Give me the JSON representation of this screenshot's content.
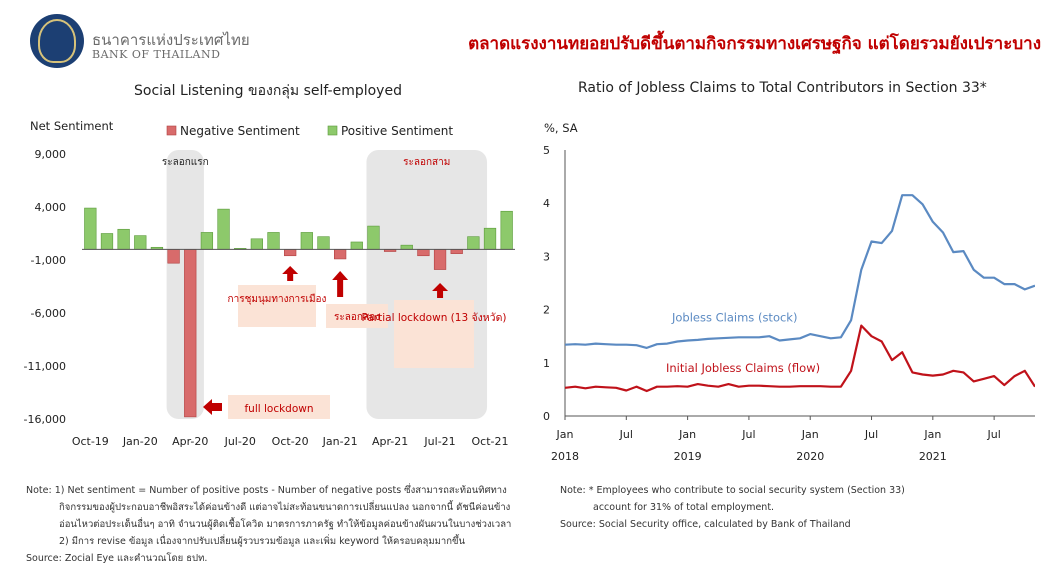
{
  "header": {
    "bank_name_th": "ธนาคารแห่งประเทศไทย",
    "bank_name_en": "BANK OF THAILAND",
    "headline": "ตลาดแรงงานทยอยปรับดีขึ้นตามกิจกรรมทางเศรษฐกิจ แต่โดยรวมยังเปราะบาง"
  },
  "colors": {
    "negative": "#d86b6b",
    "positive": "#8dc96b",
    "stock_line": "#5b8ac2",
    "flow_line": "#c0121a",
    "shade": "#e6e6e6",
    "annotation_box": "#fbe3d6",
    "annotation_text": "#c00000"
  },
  "chart_data": [
    {
      "type": "bar",
      "title": "Social Listening ของกลุ่ม self-employed",
      "ylabel": "Net Sentiment",
      "ylim": [
        -16000,
        9000
      ],
      "yticks": [
        9000,
        4000,
        -1000,
        -6000,
        -11000,
        -16000
      ],
      "ytick_labels": [
        "9,000",
        "4,000",
        "-1,000",
        "-6,000",
        "-11,000",
        "-16,000"
      ],
      "xtick_labels": [
        "Oct-19",
        "Jan-20",
        "Apr-20",
        "Jul-20",
        "Oct-20",
        "Jan-21",
        "Apr-21",
        "Jul-21",
        "Oct-21"
      ],
      "legend": [
        "Negative Sentiment",
        "Positive Sentiment"
      ],
      "legend_position": "top",
      "values": [
        3900,
        1500,
        1900,
        1300,
        200,
        -1300,
        -15800,
        1600,
        3800,
        100,
        1000,
        1600,
        -600,
        1600,
        1200,
        -900,
        700,
        2200,
        -200,
        400,
        -600,
        -1900,
        -400,
        1200,
        2000,
        3600
      ],
      "annotations": [
        {
          "text": "ระลอกแรก",
          "shaded": true
        },
        {
          "text": "ระลอกสาม",
          "shaded": true
        },
        {
          "text": "full lockdown"
        },
        {
          "text": "การชุมนุมทางการเมือง"
        },
        {
          "text": "ระลอกสอง"
        },
        {
          "text": "Partial lockdown (13 จังหวัด)"
        }
      ]
    },
    {
      "type": "line",
      "title": "Ratio of Jobless Claims to Total Contributors in Section 33*",
      "ylabel": "%, SA",
      "ylim": [
        0,
        5
      ],
      "yticks": [
        0,
        1,
        2,
        3,
        4,
        5
      ],
      "xtick_labels": [
        "Jan",
        "Jul",
        "Jan",
        "Jul",
        "Jan",
        "Jul",
        "Jan",
        "Jul"
      ],
      "year_labels": [
        "2018",
        "2019",
        "2020",
        "2021"
      ],
      "x": [
        "2018-01",
        "2018-02",
        "2018-03",
        "2018-04",
        "2018-05",
        "2018-06",
        "2018-07",
        "2018-08",
        "2018-09",
        "2018-10",
        "2018-11",
        "2018-12",
        "2019-01",
        "2019-02",
        "2019-03",
        "2019-04",
        "2019-05",
        "2019-06",
        "2019-07",
        "2019-08",
        "2019-09",
        "2019-10",
        "2019-11",
        "2019-12",
        "2020-01",
        "2020-02",
        "2020-03",
        "2020-04",
        "2020-05",
        "2020-06",
        "2020-07",
        "2020-08",
        "2020-09",
        "2020-10",
        "2020-11",
        "2020-12",
        "2021-01",
        "2021-02",
        "2021-03",
        "2021-04",
        "2021-05",
        "2021-06",
        "2021-07",
        "2021-08",
        "2021-09",
        "2021-10",
        "2021-11"
      ],
      "series": [
        {
          "name": "Jobless Claims (stock)",
          "values": [
            1.34,
            1.35,
            1.34,
            1.36,
            1.35,
            1.34,
            1.34,
            1.33,
            1.28,
            1.35,
            1.36,
            1.4,
            1.42,
            1.43,
            1.45,
            1.46,
            1.47,
            1.48,
            1.48,
            1.48,
            1.5,
            1.42,
            1.44,
            1.46,
            1.54,
            1.5,
            1.46,
            1.48,
            1.8,
            2.75,
            3.28,
            3.25,
            3.48,
            4.15,
            4.15,
            3.98,
            3.65,
            3.45,
            3.08,
            3.1,
            2.75,
            2.6,
            2.6,
            2.48,
            2.48,
            2.38,
            2.45
          ]
        },
        {
          "name": "Initial Jobless Claims (flow)",
          "values": [
            0.53,
            0.55,
            0.52,
            0.55,
            0.54,
            0.53,
            0.48,
            0.55,
            0.47,
            0.55,
            0.55,
            0.56,
            0.55,
            0.6,
            0.57,
            0.55,
            0.6,
            0.55,
            0.57,
            0.57,
            0.56,
            0.55,
            0.55,
            0.56,
            0.56,
            0.56,
            0.55,
            0.55,
            0.85,
            1.7,
            1.5,
            1.4,
            1.05,
            1.2,
            0.82,
            0.78,
            0.76,
            0.78,
            0.85,
            0.82,
            0.65,
            0.7,
            0.75,
            0.58,
            0.75,
            0.85,
            0.55
          ]
        }
      ]
    }
  ],
  "notes_left": [
    "Note: 1) Net sentiment = Number of positive posts - Number of negative posts ซึ่งสามารถสะท้อนทิศทาง",
    "กิจกรรมของผู้ประกอบอาชีพอิสระได้ค่อนข้างดี แต่อาจไม่สะท้อนขนาดการเปลี่ยนแปลง นอกจากนี้ ดัชนีค่อนข้าง",
    "อ่อนไหวต่อประเด็นอื่นๆ อาทิ จำนวนผู้ติดเชื้อโควิด มาตรการภาครัฐ ทำให้ข้อมูลค่อนข้างผันผวนในบางช่วงเวลา",
    "2) มีการ revise ข้อมูล เนื่องจากปรับเปลี่ยนผู้รวบรวมข้อมูล และเพิ่ม keyword ให้ครอบคลุมมากขึ้น",
    "Source: Zocial Eye และคำนวณโดย ธปท."
  ],
  "notes_right": [
    "Note: * Employees who contribute to social security system (Section 33)",
    "account for 31% of total employment.",
    "Source: Social Security office, calculated by Bank of Thailand"
  ]
}
